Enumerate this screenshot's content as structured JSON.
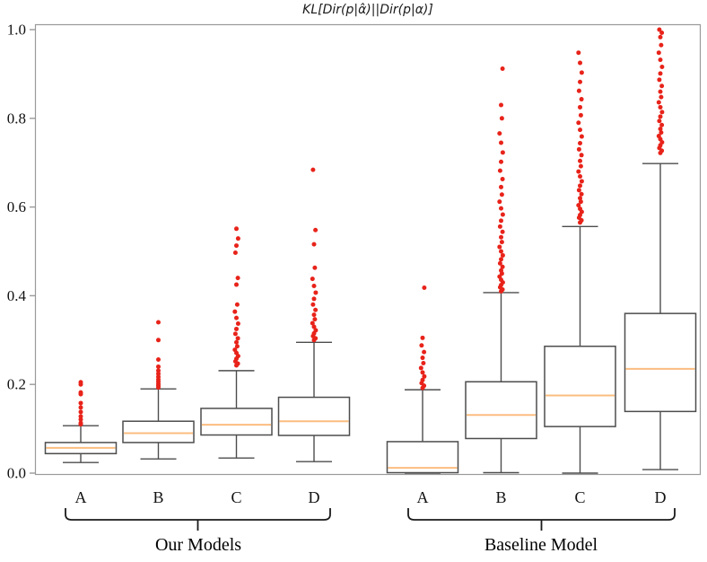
{
  "title": "KL[Dir(p|α̂)||Dir(p|α)]",
  "colors": {
    "median": "#fbbd80",
    "outlier": "#e8231a",
    "box_edge": "#4d4d4d",
    "spine": "#9a9a9a",
    "tick_text": "#111111",
    "brace": "#1a1a1a"
  },
  "chart_data": {
    "type": "box",
    "title": "KL[Dir(p|α̂)||Dir(p|α)]",
    "xlabel": "",
    "ylabel": "",
    "ylim": [
      0,
      1
    ],
    "grid": false,
    "yticks": [
      0.0,
      0.2,
      0.4,
      0.6,
      0.8,
      1.0
    ],
    "ytick_labels": [
      "0.0",
      "0.2",
      "0.4",
      "0.6",
      "0.8",
      "1.0"
    ],
    "groups": [
      {
        "label": "Our Models",
        "categories": [
          "A",
          "B",
          "C",
          "D"
        ],
        "boxes": [
          {
            "category": "A",
            "whislo": 0.024,
            "q1": 0.044,
            "med": 0.057,
            "q3": 0.069,
            "whishi": 0.107,
            "outliers": [
              0.11,
              0.113,
              0.121,
              0.128,
              0.138,
              0.148,
              0.158,
              0.178,
              0.182,
              0.2,
              0.205
            ]
          },
          {
            "category": "B",
            "whislo": 0.032,
            "q1": 0.069,
            "med": 0.09,
            "q3": 0.117,
            "whishi": 0.19,
            "outliers": [
              0.193,
              0.197,
              0.201,
              0.206,
              0.211,
              0.217,
              0.224,
              0.231,
              0.24,
              0.256,
              0.3,
              0.34
            ]
          },
          {
            "category": "C",
            "whislo": 0.034,
            "q1": 0.086,
            "med": 0.109,
            "q3": 0.146,
            "whishi": 0.231,
            "outliers": [
              0.243,
              0.247,
              0.252,
              0.258,
              0.264,
              0.271,
              0.278,
              0.286,
              0.295,
              0.304,
              0.314,
              0.325,
              0.337,
              0.35,
              0.364,
              0.38,
              0.425,
              0.44,
              0.497,
              0.513,
              0.529,
              0.551
            ]
          },
          {
            "category": "D",
            "whislo": 0.026,
            "q1": 0.085,
            "med": 0.117,
            "q3": 0.171,
            "whishi": 0.295,
            "outliers": [
              0.3,
              0.304,
              0.309,
              0.315,
              0.322,
              0.33,
              0.338,
              0.347,
              0.357,
              0.368,
              0.38,
              0.393,
              0.407,
              0.422,
              0.438,
              0.463,
              0.516,
              0.548,
              0.684
            ]
          }
        ]
      },
      {
        "label": "Baseline Model",
        "categories": [
          "A",
          "B",
          "C",
          "D"
        ],
        "boxes": [
          {
            "category": "A",
            "whislo": 0.0,
            "q1": 0.001,
            "med": 0.012,
            "q3": 0.071,
            "whishi": 0.188,
            "outliers": [
              0.192,
              0.197,
              0.203,
              0.21,
              0.218,
              0.227,
              0.237,
              0.248,
              0.26,
              0.273,
              0.288,
              0.305,
              0.418
            ]
          },
          {
            "category": "B",
            "whislo": 0.001,
            "q1": 0.078,
            "med": 0.131,
            "q3": 0.206,
            "whishi": 0.407,
            "outliers": [
              0.41,
              0.414,
              0.419,
              0.424,
              0.43,
              0.436,
              0.443,
              0.45,
              0.457,
              0.465,
              0.473,
              0.482,
              0.491,
              0.5,
              0.51,
              0.521,
              0.532,
              0.544,
              0.556,
              0.569,
              0.583,
              0.597,
              0.612,
              0.628,
              0.645,
              0.663,
              0.682,
              0.702,
              0.723,
              0.745,
              0.766,
              0.8,
              0.83,
              0.912
            ]
          },
          {
            "category": "C",
            "whislo": 0.0,
            "q1": 0.105,
            "med": 0.175,
            "q3": 0.286,
            "whishi": 0.556,
            "outliers": [
              0.565,
              0.57,
              0.576,
              0.582,
              0.589,
              0.596,
              0.604,
              0.612,
              0.62,
              0.629,
              0.638,
              0.648,
              0.658,
              0.669,
              0.68,
              0.692,
              0.704,
              0.717,
              0.73,
              0.744,
              0.759,
              0.774,
              0.79,
              0.807,
              0.825,
              0.843,
              0.862,
              0.882,
              0.903,
              0.925,
              0.948
            ]
          },
          {
            "category": "D",
            "whislo": 0.008,
            "q1": 0.139,
            "med": 0.235,
            "q3": 0.36,
            "whishi": 0.698,
            "outliers": [
              0.722,
              0.727,
              0.733,
              0.739,
              0.746,
              0.753,
              0.76,
              0.768,
              0.776,
              0.785,
              0.794,
              0.804,
              0.814,
              0.825,
              0.836,
              0.848,
              0.86,
              0.873,
              0.887,
              0.901,
              0.916,
              0.932,
              0.948,
              0.965,
              0.983,
              0.993,
              1.0
            ]
          }
        ]
      }
    ]
  }
}
